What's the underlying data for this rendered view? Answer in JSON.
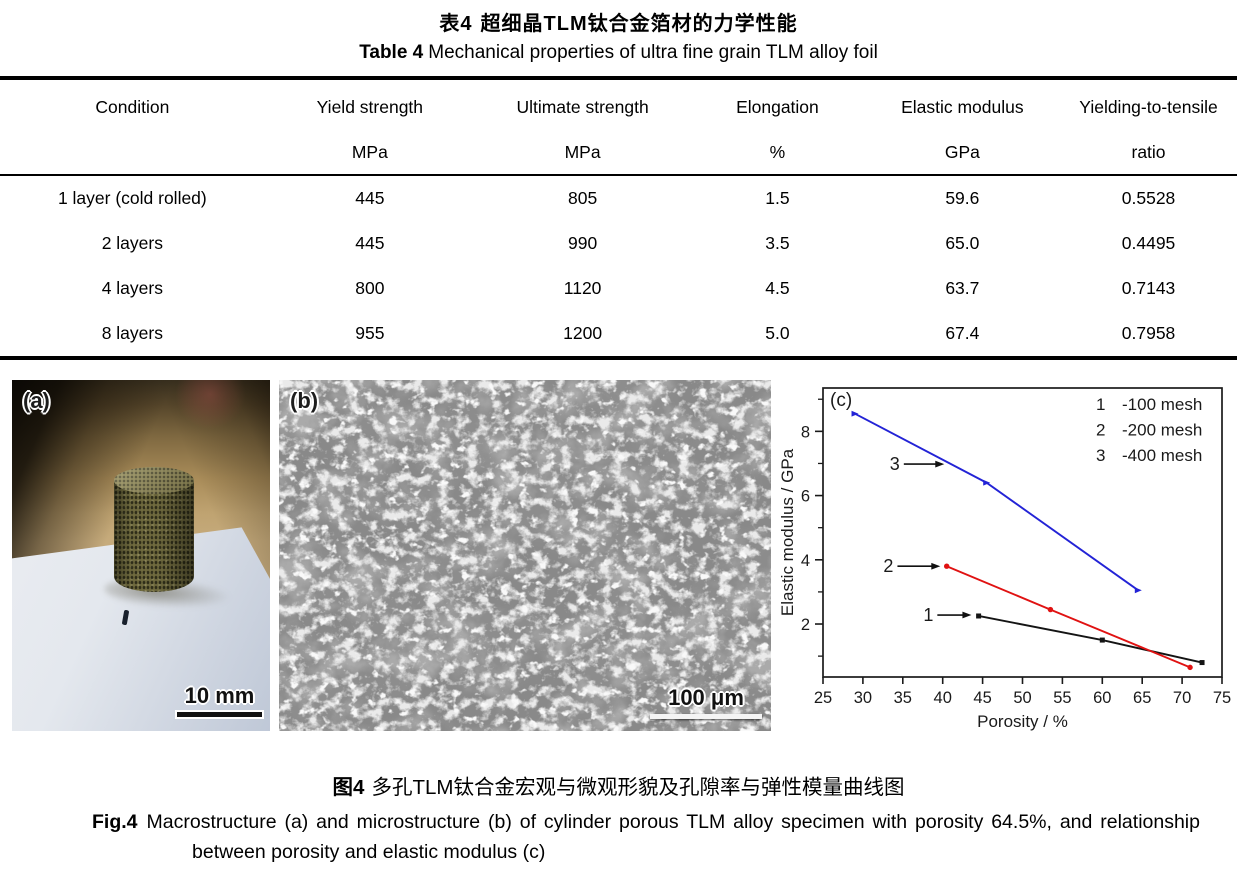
{
  "table": {
    "title_cn_prefix": "表4",
    "title_cn": "超细晶TLM钛合金箔材的力学性能",
    "title_en_prefix": "Table 4",
    "title_en": "Mechanical properties of ultra fine grain TLM alloy foil",
    "columns": [
      {
        "label": "Condition",
        "unit": ""
      },
      {
        "label": "Yield strength",
        "unit": "MPa"
      },
      {
        "label": "Ultimate strength",
        "unit": "MPa"
      },
      {
        "label": "Elongation",
        "unit": "%"
      },
      {
        "label": "Elastic modulus",
        "unit": "GPa"
      },
      {
        "label": "Yielding-to-tensile",
        "unit": "ratio"
      }
    ],
    "rows": [
      [
        "1 layer (cold rolled)",
        "445",
        "805",
        "1.5",
        "59.6",
        "0.5528"
      ],
      [
        "2 layers",
        "445",
        "990",
        "3.5",
        "65.0",
        "0.4495"
      ],
      [
        "4 layers",
        "800",
        "1120",
        "4.5",
        "63.7",
        "0.7143"
      ],
      [
        "8 layers",
        "955",
        "1200",
        "5.0",
        "67.4",
        "0.7958"
      ]
    ]
  },
  "figures": {
    "a": {
      "label": "(a)",
      "scale_bar": "10 mm"
    },
    "b": {
      "label": "(b)",
      "scale_bar": "100 μm"
    },
    "c": {
      "label": "(c)"
    }
  },
  "chart_data": {
    "type": "line",
    "title": "",
    "xlabel": "Porosity / %",
    "ylabel": "Elastic modulus / GPa",
    "xlim": [
      25,
      75
    ],
    "ylim": [
      0.35,
      9.35
    ],
    "xticks": [
      25,
      30,
      35,
      40,
      45,
      50,
      55,
      60,
      65,
      70,
      75
    ],
    "yticks": [
      2,
      4,
      6,
      8
    ],
    "yticks_minor": [
      1,
      3,
      5,
      7,
      9
    ],
    "grid": false,
    "legend_position": "top-right-inside",
    "series": [
      {
        "number": "1",
        "name": "-100 mesh",
        "color": "#141414",
        "marker": "square",
        "x": [
          44.5,
          60,
          72.5
        ],
        "y": [
          2.25,
          1.5,
          0.8
        ]
      },
      {
        "number": "2",
        "name": "-200 mesh",
        "color": "#e01212",
        "marker": "circle",
        "x": [
          40.5,
          53.5,
          71
        ],
        "y": [
          3.8,
          2.45,
          0.65
        ]
      },
      {
        "number": "3",
        "name": "-400 mesh",
        "color": "#2323d6",
        "marker": "triangle",
        "x": [
          29,
          45.5,
          64.5
        ],
        "y": [
          8.55,
          6.4,
          3.05
        ]
      }
    ],
    "annotations": [
      {
        "label": "1",
        "y": 2.28,
        "label_x": 38.2,
        "arrow_end_x": 43.6
      },
      {
        "label": "2",
        "y": 3.8,
        "label_x": 33.2,
        "arrow_end_x": 39.7
      },
      {
        "label": "3",
        "y": 6.98,
        "label_x": 34.0,
        "arrow_end_x": 40.2
      }
    ]
  },
  "caption": {
    "cn_prefix": "图4",
    "cn": "多孔TLM钛合金宏观与微观形貌及孔隙率与弹性模量曲线图",
    "en_prefix": "Fig.4",
    "en": "Macrostructure (a) and microstructure (b) of cylinder porous TLM alloy specimen with porosity 64.5%, and relationship between porosity and elastic modulus (c)"
  }
}
